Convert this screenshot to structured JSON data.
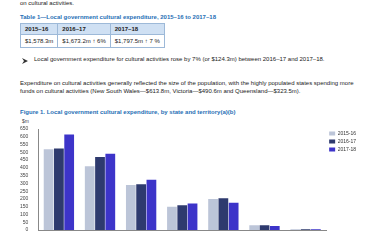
{
  "page": {
    "intro": "on cultural activities.",
    "table": {
      "title": "Table 1—Local government cultural expenditure, 2015–16 to 2017–18",
      "header": [
        "2015–16",
        "2016–17",
        "2017–18"
      ],
      "rows": [
        [
          "$1,578.3m",
          "$1,673.2m ↑ 6%",
          "$1,797.5m ↑ 7 %"
        ]
      ]
    },
    "bullet": "Local government expenditure for cultural activities rose by 7% (or $124.3m) between 2016–17 and 2017–18.",
    "paragraph": "Expenditure on cultural activities generally reflected the size of the population, with the highly populated states spending more funds on cultural activities (New South Wales—$613.8m, Victoria—$490.6m and Queensland—$323.5m).",
    "figure_caption": "Figure 1. Local government cultural expenditure, by state and territory(a)(b)"
  },
  "chart_data": {
    "type": "bar",
    "y_label": "$m",
    "categories": [
      null,
      null,
      null,
      null,
      null,
      null,
      null
    ],
    "series": [
      {
        "name": "2015-16",
        "color": "#bcc5d8",
        "values": [
          520,
          410,
          290,
          150,
          200,
          30,
          5
        ]
      },
      {
        "name": "2016-17",
        "color": "#2e3a6e",
        "values": [
          525,
          470,
          295,
          160,
          205,
          30,
          5
        ]
      },
      {
        "name": "2017-18",
        "color": "#3d34c9",
        "values": [
          614,
          491,
          324,
          170,
          175,
          25,
          5
        ]
      }
    ],
    "ylim": [
      0,
      650
    ],
    "yticks": [
      0,
      50,
      100,
      150,
      200,
      250,
      300,
      350,
      400,
      450,
      500,
      550,
      600,
      650
    ],
    "grid": false,
    "legend": "upper right",
    "tick_labels": "y"
  }
}
